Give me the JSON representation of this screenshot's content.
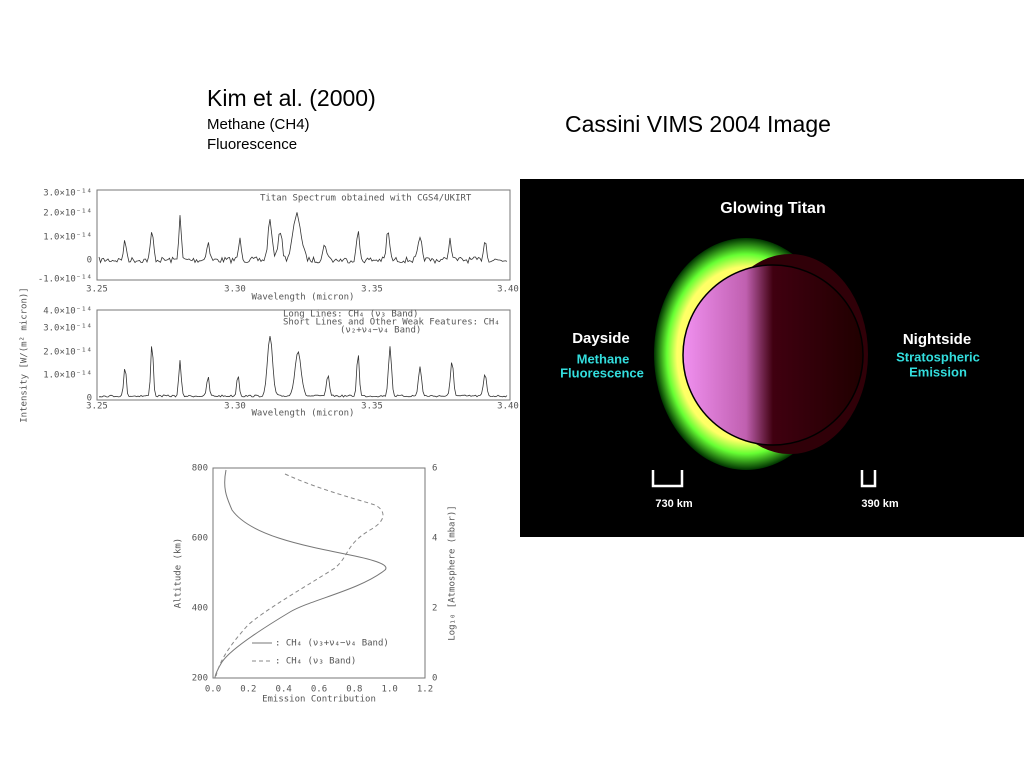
{
  "left_heading": {
    "title": "Kim et al. (2000)",
    "lines": [
      "Methane (CH4)",
      "Fluorescence"
    ]
  },
  "right_heading": "Cassini VIMS 2004 Image",
  "spectrum_top": {
    "annotation": "Titan Spectrum obtained with CGS4/UKIRT",
    "y_tick_labels": [
      "3.0×10⁻¹⁴",
      "2.0×10⁻¹⁴",
      "1.0×10⁻¹⁴",
      "0",
      "-1.0×10⁻¹⁴"
    ],
    "x_tick_labels": [
      "3.25",
      "3.30",
      "3.35",
      "3.40"
    ],
    "x_label": "Wavelength (micron)"
  },
  "spectrum_bottom": {
    "legend": [
      "Long Lines: CH₄ (ν₃ Band)",
      "Short Lines and Other Weak Features: CH₄",
      "(ν₂+ν₄−ν₄ Band)"
    ],
    "y_tick_labels": [
      "4.0×10⁻¹⁴",
      "3.0×10⁻¹⁴",
      "2.0×10⁻¹⁴",
      "1.0×10⁻¹⁴",
      "0"
    ],
    "x_tick_labels": [
      "3.25",
      "3.30",
      "3.35",
      "3.40"
    ],
    "x_label": "Wavelength (micron)",
    "y_label": "Intensity [W/(m² micron)]"
  },
  "profile": {
    "y_tick_labels": [
      "800",
      "600",
      "400",
      "200"
    ],
    "y2_tick_labels": [
      "6",
      "4",
      "2",
      "0"
    ],
    "x_tick_labels": [
      "0.0",
      "0.2",
      "0.4",
      "0.6",
      "0.8",
      "1.0",
      "1.2"
    ],
    "x_label": "Emission Contribution",
    "y_label": "Altitude (km)",
    "y2_label": "Log₁₀ [Atmosphere (mbar)]",
    "legend": [
      ": CH₄ (ν₃+ν₄−ν₄ Band)",
      ": CH₄ (ν₃ Band)"
    ]
  },
  "titan_image": {
    "title": "Glowing Titan",
    "dayside": "Dayside",
    "dayside_lines": [
      "Methane",
      "Fluorescence"
    ],
    "nightside": "Nightside",
    "nightside_lines": [
      "Stratospheric",
      "Emission"
    ],
    "scale_left": "730 km",
    "scale_right": "390 km"
  }
}
